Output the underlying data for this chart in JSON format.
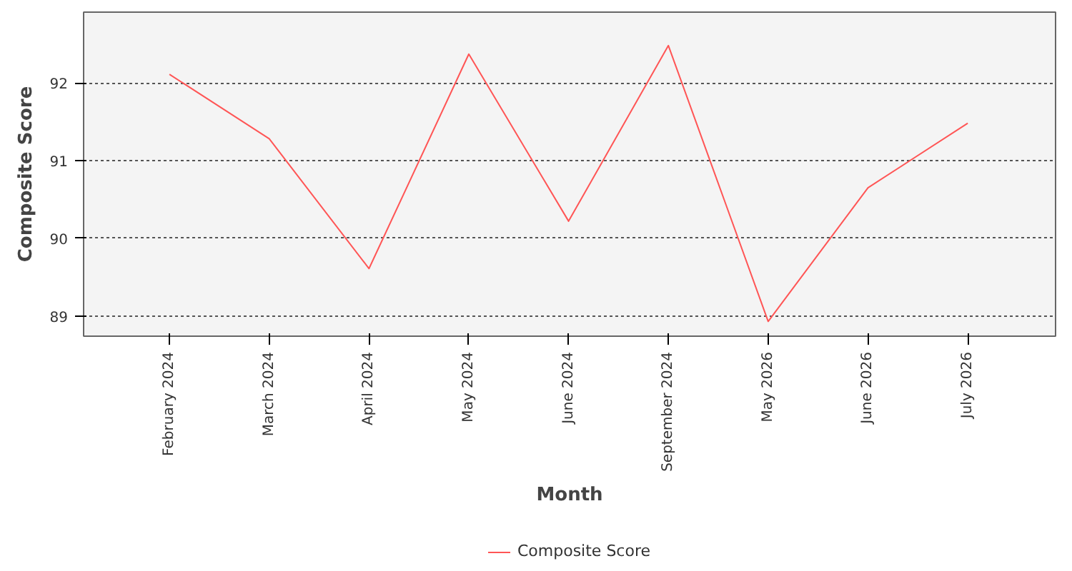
{
  "chart_data": {
    "type": "line",
    "xlabel": "Month",
    "ylabel": "Composite Score",
    "categories": [
      "February 2024",
      "March 2024",
      "April 2024",
      "May 2024",
      "June 2024",
      "September 2024",
      "May 2026",
      "June 2026",
      "July 2026"
    ],
    "series": [
      {
        "name": "Composite Score",
        "color": "#ff5555",
        "values": [
          92.11,
          91.28,
          89.61,
          92.37,
          90.22,
          92.48,
          88.93,
          90.65,
          91.48
        ]
      }
    ],
    "ylim": [
      88.74,
      92.91
    ],
    "yticks": [
      89,
      90,
      91,
      92
    ],
    "grid": "y",
    "legend": "bottom",
    "marker": "none",
    "line_style": "solid"
  }
}
